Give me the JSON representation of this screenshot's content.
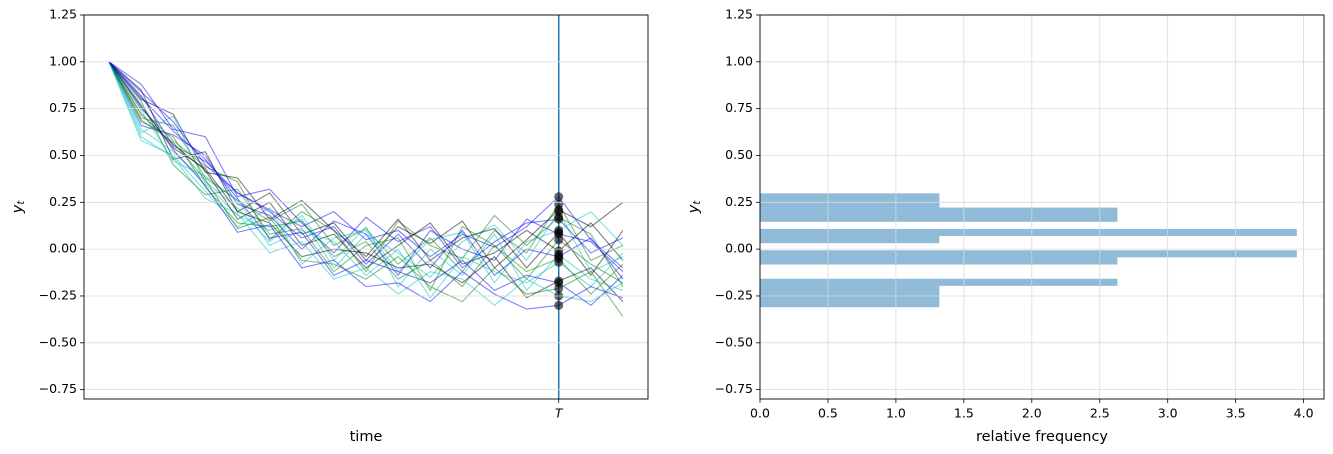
{
  "chart_data": [
    {
      "type": "line",
      "xlabel": "time",
      "ylabel": "y_t",
      "grid": "y",
      "x": [
        0,
        1,
        2,
        3,
        4,
        5,
        6,
        7,
        8,
        9,
        10,
        11,
        12,
        13,
        14,
        15,
        16
      ],
      "xlim": [
        -0.78,
        16.78
      ],
      "xticks": [
        {
          "value": 14,
          "label": "T"
        }
      ],
      "ylim": [
        -0.8,
        1.25
      ],
      "yticks": [
        {
          "value": -0.75,
          "label": "−0.75"
        },
        {
          "value": -0.5,
          "label": "−0.50"
        },
        {
          "value": -0.25,
          "label": "−0.25"
        },
        {
          "value": 0,
          "label": "0.00"
        },
        {
          "value": 0.25,
          "label": "0.25"
        },
        {
          "value": 0.5,
          "label": "0.50"
        },
        {
          "value": 0.75,
          "label": "0.75"
        },
        {
          "value": 1.0,
          "label": "1.00"
        },
        {
          "value": 1.25,
          "label": "1.25"
        }
      ],
      "alpha": 0.5,
      "vline_color": "#1f77b4",
      "points_color": "#000000",
      "points_alpha": 0.6,
      "series": [
        {
          "color": "#0000ff",
          "values": [
            1,
            0.82,
            0.55,
            0.47,
            0.3,
            0.21,
            0.12,
            0.2,
            0.05,
            0.1,
            -0.04,
            0.08,
            0.01,
            0.12,
            0.28,
            0.05,
            -0.1
          ]
        },
        {
          "color": "#008000",
          "values": [
            1,
            0.7,
            0.66,
            0.38,
            0.26,
            0.15,
            0.24,
            0.02,
            0.11,
            -0.08,
            0.06,
            -0.12,
            0.1,
            -0.02,
            0.24,
            -0.06,
            0.02
          ]
        },
        {
          "color": "#000000",
          "values": [
            1,
            0.85,
            0.48,
            0.52,
            0.2,
            0.3,
            0.08,
            0.14,
            -0.06,
            0.12,
            0.03,
            0.15,
            -0.1,
            0.05,
            0.21,
            0.12,
            0.25
          ]
        },
        {
          "color": "#00bfbf",
          "values": [
            1,
            0.62,
            0.71,
            0.35,
            0.18,
            0.1,
            0.16,
            -0.1,
            0.08,
            -0.02,
            -0.15,
            0.04,
            0.13,
            -0.06,
            0.2,
            -0.12,
            -0.04
          ]
        },
        {
          "color": "#008000",
          "values": [
            1,
            0.75,
            0.58,
            0.44,
            0.36,
            0.05,
            0.2,
            0.1,
            -0.12,
            0.15,
            0.02,
            -0.05,
            0.18,
            0.02,
            0.17,
            0.08,
            -0.2
          ]
        },
        {
          "color": "#0000ff",
          "values": [
            1,
            0.88,
            0.64,
            0.6,
            0.28,
            0.32,
            0.14,
            -0.02,
            0.17,
            0.04,
            0.12,
            -0.1,
            0.04,
            0.14,
            0.16,
            -0.02,
            0.06
          ]
        },
        {
          "color": "#00bfbf",
          "values": [
            1,
            0.58,
            0.5,
            0.31,
            0.12,
            0.22,
            -0.08,
            0.06,
            0.1,
            -0.12,
            0.05,
            0.09,
            -0.18,
            0.04,
            0.1,
            0.2,
            0.02
          ]
        },
        {
          "color": "#000000",
          "values": [
            1,
            0.8,
            0.72,
            0.41,
            0.38,
            0.16,
            0.26,
            0.1,
            -0.04,
            0.16,
            -0.06,
            0.06,
            0.11,
            -0.1,
            0.09,
            -0.14,
            0.1
          ]
        },
        {
          "color": "#0000ff",
          "values": [
            1,
            0.66,
            0.61,
            0.5,
            0.24,
            0.18,
            0.0,
            0.15,
            0.08,
            -0.14,
            0.1,
            0.0,
            -0.06,
            0.16,
            0.08,
            0.04,
            -0.12
          ]
        },
        {
          "color": "#008000",
          "values": [
            1,
            0.79,
            0.45,
            0.29,
            0.32,
            0.08,
            0.11,
            -0.12,
            0.02,
            0.06,
            -0.22,
            0.12,
            0.02,
            -0.16,
            0.05,
            -0.08,
            -0.18
          ]
        },
        {
          "color": "#000000",
          "values": [
            1,
            0.72,
            0.56,
            0.42,
            0.16,
            0.25,
            0.02,
            0.08,
            -0.1,
            0.02,
            0.14,
            -0.08,
            -0.02,
            0.1,
            -0.01,
            0.14,
            -0.06
          ]
        },
        {
          "color": "#00bfbf",
          "values": [
            1,
            0.64,
            0.52,
            0.36,
            0.22,
            0.04,
            0.18,
            -0.06,
            0.12,
            -0.2,
            0.0,
            -0.14,
            0.08,
            -0.22,
            -0.03,
            -0.16,
            -0.22
          ]
        },
        {
          "color": "#0000ff",
          "values": [
            1,
            0.84,
            0.68,
            0.45,
            0.3,
            0.2,
            0.06,
            0.12,
            -0.08,
            0.08,
            -0.1,
            0.1,
            -0.14,
            0.0,
            -0.04,
            0.06,
            -0.16
          ]
        },
        {
          "color": "#008000",
          "values": [
            1,
            0.68,
            0.6,
            0.33,
            0.14,
            0.12,
            0.15,
            -0.04,
            0.04,
            -0.16,
            -0.06,
            -0.2,
            0.02,
            -0.12,
            -0.05,
            -0.24,
            -0.08
          ]
        },
        {
          "color": "#00bfbf",
          "values": [
            1,
            0.74,
            0.47,
            0.39,
            0.26,
            0.02,
            0.1,
            0.04,
            -0.14,
            0.0,
            -0.26,
            -0.04,
            -0.12,
            -0.18,
            -0.07,
            -0.2,
            -0.02
          ]
        },
        {
          "color": "#000000",
          "values": [
            1,
            0.76,
            0.54,
            0.43,
            0.2,
            0.14,
            -0.04,
            0.0,
            -0.02,
            -0.1,
            -0.08,
            -0.18,
            -0.04,
            -0.26,
            -0.17,
            -0.1,
            -0.28
          ]
        },
        {
          "color": "#0000ff",
          "values": [
            1,
            0.81,
            0.63,
            0.48,
            0.27,
            0.06,
            0.09,
            -0.14,
            -0.06,
            -0.12,
            -0.18,
            -0.06,
            -0.22,
            -0.14,
            -0.18,
            -0.3,
            -0.14
          ]
        },
        {
          "color": "#008000",
          "values": [
            1,
            0.69,
            0.57,
            0.37,
            0.11,
            0.17,
            -0.06,
            -0.08,
            -0.16,
            -0.04,
            -0.2,
            -0.28,
            -0.1,
            -0.24,
            -0.21,
            -0.12,
            -0.36
          ]
        },
        {
          "color": "#00bfbf",
          "values": [
            1,
            0.6,
            0.49,
            0.27,
            0.19,
            -0.02,
            0.04,
            -0.16,
            -0.1,
            -0.24,
            -0.12,
            -0.16,
            -0.3,
            -0.16,
            -0.25,
            -0.28,
            -0.18
          ]
        },
        {
          "color": "#0000ff",
          "values": [
            1,
            0.77,
            0.53,
            0.34,
            0.09,
            0.13,
            -0.1,
            -0.06,
            -0.2,
            -0.18,
            -0.28,
            -0.12,
            -0.24,
            -0.32,
            -0.3,
            -0.2,
            -0.26
          ]
        }
      ]
    },
    {
      "type": "hist",
      "orientation": "horizontal",
      "xlabel": "relative frequency",
      "ylabel": "y_t",
      "grid": "both",
      "color": "#1f77b4",
      "alpha": 0.5,
      "bins": [
        -0.31,
        -0.272,
        -0.234,
        -0.196,
        -0.158,
        -0.12,
        -0.082,
        -0.044,
        -0.006,
        0.032,
        0.07,
        0.108,
        0.146,
        0.184,
        0.222,
        0.26,
        0.298
      ],
      "counts": [
        1.32,
        1.32,
        1.32,
        2.63,
        0,
        0,
        2.63,
        3.95,
        0,
        1.32,
        3.95,
        0,
        2.63,
        2.63,
        1.32,
        1.32
      ],
      "xlim": [
        0,
        4.15
      ],
      "xticks": [
        {
          "value": 0,
          "label": "0.0"
        },
        {
          "value": 0.5,
          "label": "0.5"
        },
        {
          "value": 1,
          "label": "1.0"
        },
        {
          "value": 1.5,
          "label": "1.5"
        },
        {
          "value": 2,
          "label": "2.0"
        },
        {
          "value": 2.5,
          "label": "2.5"
        },
        {
          "value": 3,
          "label": "3.0"
        },
        {
          "value": 3.5,
          "label": "3.5"
        },
        {
          "value": 4,
          "label": "4.0"
        }
      ],
      "ylim": [
        -0.8,
        1.25
      ],
      "yticks": [
        {
          "value": -0.75,
          "label": "−0.75"
        },
        {
          "value": -0.5,
          "label": "−0.50"
        },
        {
          "value": -0.25,
          "label": "−0.25"
        },
        {
          "value": 0,
          "label": "0.00"
        },
        {
          "value": 0.25,
          "label": "0.25"
        },
        {
          "value": 0.5,
          "label": "0.50"
        },
        {
          "value": 0.75,
          "label": "0.75"
        },
        {
          "value": 1.0,
          "label": "1.00"
        },
        {
          "value": 1.25,
          "label": "1.25"
        }
      ]
    }
  ]
}
